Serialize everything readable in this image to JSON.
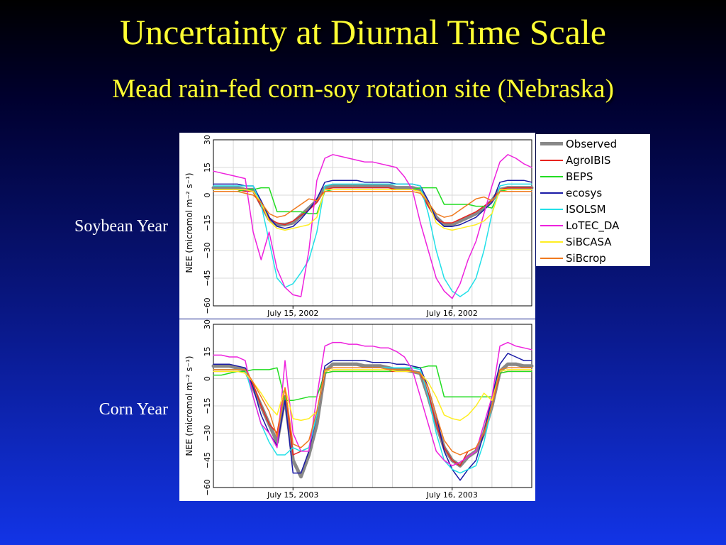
{
  "slide": {
    "title": "Uncertainty at Diurnal Time Scale",
    "subtitle": "Mead rain-fed corn-soy rotation site (Nebraska)"
  },
  "chart_data": [
    {
      "type": "line",
      "panel_label": "Soybean Year",
      "ylabel": "NEE (micromol m⁻² s⁻¹)",
      "ylim": [
        -60,
        30
      ],
      "yticks": [
        "30",
        "15",
        "0",
        "−15",
        "−30",
        "−45",
        "−60"
      ],
      "xlim": [
        0,
        48
      ],
      "xticks": [
        {
          "x": 12,
          "label": "July 15, 2002"
        },
        {
          "x": 36,
          "label": "July 16, 2002"
        }
      ],
      "grid": true,
      "series": [
        {
          "name": "Observed",
          "color": "#888888",
          "width": 5,
          "values": [
            4,
            4,
            4,
            4,
            3,
            3,
            -5,
            -13,
            -16,
            -16,
            -15,
            -11,
            -7,
            -3,
            4,
            5,
            5,
            5,
            5,
            5,
            5,
            5,
            5,
            4,
            4,
            4,
            3,
            -5,
            -12,
            -16,
            -16,
            -14,
            -12,
            -10,
            -7,
            -3,
            3,
            4,
            4,
            4,
            4
          ]
        },
        {
          "name": "AgroIBIS",
          "color": "#e8231f",
          "width": 1.5,
          "values": [
            3,
            3,
            3,
            3,
            2,
            2,
            -6,
            -13,
            -15,
            -16,
            -14,
            -11,
            -8,
            -4,
            3,
            4,
            4,
            4,
            4,
            4,
            4,
            4,
            4,
            3,
            3,
            3,
            2,
            -6,
            -13,
            -15,
            -15,
            -13,
            -11,
            -9,
            -6,
            -3,
            3,
            4,
            4,
            4,
            4
          ]
        },
        {
          "name": "BEPS",
          "color": "#22dd22",
          "width": 1.5,
          "values": [
            2,
            2,
            2,
            2,
            3,
            3,
            4,
            4,
            -9,
            -9,
            -9,
            -9,
            -10,
            -10,
            2,
            3,
            3,
            3,
            3,
            3,
            3,
            3,
            3,
            3,
            3,
            3,
            4,
            4,
            4,
            -5,
            -5,
            -5,
            -5,
            -6,
            -6,
            -7,
            2,
            3,
            3,
            3,
            3
          ]
        },
        {
          "name": "ecosys",
          "color": "#1a1aa6",
          "width": 1.5,
          "values": [
            6,
            6,
            6,
            6,
            5,
            5,
            -3,
            -12,
            -17,
            -18,
            -17,
            -13,
            -8,
            -2,
            7,
            8,
            8,
            8,
            8,
            7,
            7,
            7,
            7,
            6,
            6,
            6,
            5,
            -3,
            -13,
            -17,
            -17,
            -16,
            -14,
            -12,
            -8,
            -4,
            7,
            8,
            8,
            8,
            7
          ]
        },
        {
          "name": "ISOLSM",
          "color": "#22e0e8",
          "width": 1.5,
          "values": [
            5,
            5,
            5,
            5,
            5,
            5,
            -5,
            -25,
            -45,
            -50,
            -48,
            -42,
            -35,
            -20,
            5,
            6,
            6,
            6,
            6,
            6,
            6,
            6,
            6,
            6,
            6,
            6,
            5,
            -10,
            -30,
            -45,
            -52,
            -55,
            -52,
            -45,
            -30,
            -10,
            5,
            6,
            6,
            6,
            6
          ]
        },
        {
          "name": "LoTEC_DA",
          "color": "#ee22dd",
          "width": 1.5,
          "values": [
            13,
            12,
            11,
            10,
            9,
            -20,
            -35,
            -20,
            -40,
            -50,
            -54,
            -55,
            -30,
            8,
            20,
            22,
            21,
            20,
            19,
            18,
            18,
            17,
            16,
            15,
            10,
            3,
            -15,
            -30,
            -45,
            -52,
            -56,
            -48,
            -35,
            -25,
            -10,
            5,
            18,
            22,
            20,
            17,
            15
          ]
        },
        {
          "name": "SiBCASA",
          "color": "#ffee22",
          "width": 1.5,
          "values": [
            3,
            3,
            3,
            3,
            3,
            2,
            -4,
            -14,
            -18,
            -19,
            -18,
            -17,
            -16,
            -12,
            3,
            3,
            3,
            3,
            3,
            3,
            3,
            3,
            3,
            3,
            3,
            3,
            2,
            -4,
            -15,
            -18,
            -19,
            -18,
            -17,
            -16,
            -14,
            -10,
            3,
            3,
            3,
            3,
            3
          ]
        },
        {
          "name": "SiBcrop",
          "color": "#f07a1e",
          "width": 1.5,
          "values": [
            2,
            2,
            2,
            2,
            1,
            0,
            -4,
            -10,
            -12,
            -11,
            -8,
            -5,
            -2,
            -3,
            2,
            2,
            2,
            2,
            2,
            2,
            2,
            2,
            2,
            2,
            2,
            2,
            1,
            -4,
            -10,
            -12,
            -11,
            -8,
            -5,
            -2,
            -1,
            -3,
            2,
            2,
            2,
            2,
            2
          ]
        }
      ]
    },
    {
      "type": "line",
      "panel_label": "Corn Year",
      "ylabel": "NEE (micromol m⁻² s⁻¹)",
      "ylim": [
        -60,
        30
      ],
      "yticks": [
        "30",
        "15",
        "0",
        "−15",
        "−30",
        "−45",
        "−60"
      ],
      "xlim": [
        0,
        48
      ],
      "xticks": [
        {
          "x": 12,
          "label": "July 15, 2003"
        },
        {
          "x": 36,
          "label": "July 16, 2003"
        }
      ],
      "grid": true,
      "series": [
        {
          "name": "Observed",
          "color": "#888888",
          "width": 5,
          "values": [
            7,
            7,
            7,
            6,
            5,
            -5,
            -15,
            -25,
            -35,
            -10,
            -45,
            -54,
            -42,
            -25,
            4,
            8,
            8,
            8,
            8,
            7,
            7,
            7,
            6,
            5,
            5,
            4,
            3,
            -10,
            -25,
            -38,
            -45,
            -48,
            -43,
            -40,
            -30,
            -15,
            4,
            8,
            8,
            7,
            7
          ]
        },
        {
          "name": "AgroIBIS",
          "color": "#e8231f",
          "width": 1.5,
          "values": [
            4,
            4,
            4,
            4,
            4,
            -3,
            -15,
            -25,
            -30,
            -5,
            -42,
            -40,
            -38,
            -20,
            3,
            4,
            4,
            4,
            4,
            4,
            4,
            4,
            4,
            4,
            4,
            4,
            3,
            -8,
            -25,
            -38,
            -45,
            -48,
            -40,
            -38,
            -30,
            -15,
            3,
            4,
            4,
            4,
            4
          ]
        },
        {
          "name": "BEPS",
          "color": "#22dd22",
          "width": 1.5,
          "values": [
            2,
            2,
            3,
            4,
            4,
            5,
            5,
            5,
            6,
            -12,
            -12,
            -11,
            -10,
            -10,
            3,
            4,
            4,
            4,
            4,
            4,
            4,
            4,
            4,
            5,
            5,
            6,
            6,
            7,
            7,
            -10,
            -10,
            -10,
            -10,
            -10,
            -10,
            -10,
            3,
            4,
            4,
            4,
            4
          ]
        },
        {
          "name": "ecosys",
          "color": "#1a1aa6",
          "width": 1.5,
          "values": [
            8,
            8,
            8,
            7,
            6,
            -5,
            -20,
            -30,
            -37,
            -12,
            -52,
            -52,
            -40,
            -20,
            7,
            10,
            10,
            10,
            10,
            10,
            9,
            9,
            9,
            8,
            8,
            7,
            6,
            -5,
            -20,
            -40,
            -50,
            -56,
            -50,
            -45,
            -30,
            -10,
            8,
            14,
            12,
            10,
            10
          ]
        },
        {
          "name": "ISOLSM",
          "color": "#22e0e8",
          "width": 1.5,
          "values": [
            5,
            5,
            5,
            5,
            5,
            -10,
            -25,
            -35,
            -42,
            -42,
            -38,
            -40,
            -38,
            -20,
            5,
            6,
            6,
            6,
            6,
            6,
            6,
            6,
            6,
            6,
            6,
            6,
            5,
            -10,
            -30,
            -45,
            -50,
            -52,
            -50,
            -48,
            -35,
            -15,
            5,
            6,
            6,
            6,
            6
          ]
        },
        {
          "name": "LoTEC_DA",
          "color": "#ee22dd",
          "width": 1.5,
          "values": [
            13,
            13,
            12,
            12,
            10,
            -10,
            -25,
            -30,
            -38,
            10,
            -30,
            -40,
            -40,
            -10,
            18,
            20,
            20,
            19,
            19,
            18,
            18,
            17,
            17,
            15,
            12,
            5,
            -10,
            -25,
            -40,
            -45,
            -48,
            -46,
            -43,
            -40,
            -25,
            -10,
            18,
            20,
            18,
            17,
            16
          ]
        },
        {
          "name": "SiBCASA",
          "color": "#ffee22",
          "width": 1.5,
          "values": [
            4,
            4,
            4,
            4,
            3,
            -2,
            -8,
            -15,
            -20,
            -5,
            -22,
            -23,
            -22,
            -18,
            4,
            5,
            5,
            5,
            5,
            5,
            5,
            5,
            5,
            4,
            4,
            4,
            3,
            -2,
            -10,
            -20,
            -22,
            -23,
            -20,
            -15,
            -8,
            -12,
            4,
            5,
            5,
            5,
            5
          ]
        },
        {
          "name": "SiBcrop",
          "color": "#f07a1e",
          "width": 1.5,
          "values": [
            5,
            5,
            5,
            5,
            5,
            -2,
            -10,
            -18,
            -32,
            -5,
            -36,
            -38,
            -34,
            -18,
            5,
            6,
            6,
            6,
            6,
            6,
            6,
            6,
            5,
            5,
            5,
            4,
            3,
            -5,
            -20,
            -34,
            -40,
            -42,
            -40,
            -38,
            -30,
            -15,
            5,
            6,
            6,
            6,
            6
          ]
        }
      ]
    }
  ],
  "legend": [
    {
      "name": "Observed",
      "color": "#888888",
      "width": 5
    },
    {
      "name": "AgroIBIS",
      "color": "#e8231f",
      "width": 2
    },
    {
      "name": "BEPS",
      "color": "#22dd22",
      "width": 2
    },
    {
      "name": "ecosys",
      "color": "#1a1aa6",
      "width": 2
    },
    {
      "name": "ISOLSM",
      "color": "#22e0e8",
      "width": 2
    },
    {
      "name": "LoTEC_DA",
      "color": "#ee22dd",
      "width": 2
    },
    {
      "name": "SiBCASA",
      "color": "#ffee22",
      "width": 2
    },
    {
      "name": "SiBcrop",
      "color": "#f07a1e",
      "width": 2
    }
  ]
}
